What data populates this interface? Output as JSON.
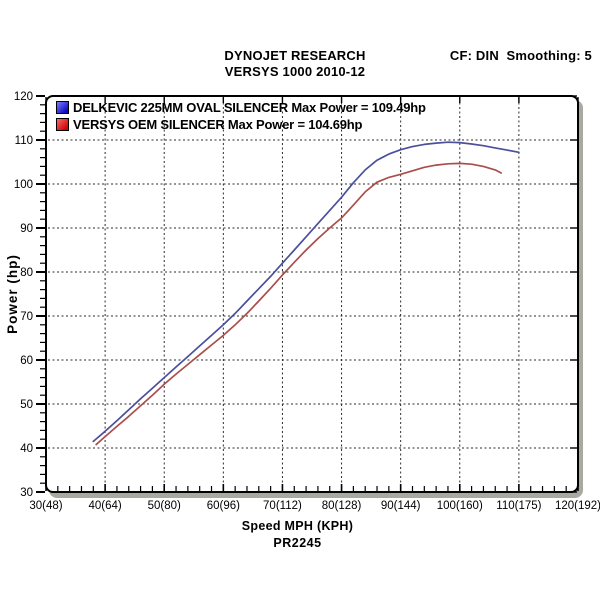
{
  "header": {
    "title": "DYNOJET RESEARCH",
    "subtitle": "VERSYS 1000 2010-12",
    "correction": "CF: DIN  Smoothing: 5"
  },
  "footer": {
    "xlabel": "Speed MPH (KPH)",
    "run_id": "PR2245"
  },
  "chart_data": {
    "type": "line",
    "title": "DYNOJET RESEARCH — VERSYS 1000 2010-12",
    "xlabel": "Speed MPH (KPH)",
    "ylabel": "Power (hp)",
    "xlim": [
      30,
      120
    ],
    "ylim": [
      30,
      120
    ],
    "grid": true,
    "grid_style": "dashed",
    "legend_position": "top-left",
    "x_major_ticks": [
      30,
      40,
      50,
      60,
      70,
      80,
      90,
      100,
      110,
      120
    ],
    "x_tick_labels": [
      "30(48)",
      "40(64)",
      "50(80)",
      "60(96)",
      "70(112)",
      "80(128)",
      "90(144)",
      "100(160)",
      "110(175)",
      "120(192)"
    ],
    "y_major_ticks": [
      30,
      40,
      50,
      60,
      70,
      80,
      90,
      100,
      110,
      120
    ],
    "y_tick_labels": [
      "30",
      "40",
      "50",
      "60",
      "70",
      "80",
      "90",
      "100",
      "110",
      "120"
    ],
    "minor_tick_step": 2,
    "series": [
      {
        "name": "DELKEVIC 225MM OVAL SILENCER",
        "legend_label": "DELKEVIC 225MM OVAL SILENCER Max Power = 109.49hp",
        "max_power_hp": 109.49,
        "color": "#4b4f9c",
        "swatch_light": "#7d7dff",
        "swatch_dark": "#0a0ac0",
        "x": [
          38,
          40,
          42,
          44,
          46,
          48,
          50,
          52,
          54,
          56,
          58,
          60,
          62,
          64,
          66,
          68,
          70,
          72,
          74,
          76,
          78,
          80,
          82,
          84,
          86,
          88,
          90,
          92,
          94,
          96,
          98,
          100,
          102,
          104,
          106,
          108,
          110
        ],
        "y": [
          41.5,
          43.8,
          46.2,
          48.7,
          51.2,
          53.6,
          56.0,
          58.4,
          60.8,
          63.2,
          65.6,
          68.0,
          70.6,
          73.4,
          76.2,
          79.0,
          82.0,
          85.0,
          88.0,
          91.0,
          94.0,
          97.0,
          100.3,
          103.2,
          105.4,
          106.8,
          107.8,
          108.5,
          109.0,
          109.3,
          109.49,
          109.4,
          109.1,
          108.7,
          108.2,
          107.7,
          107.2
        ]
      },
      {
        "name": "VERSYS OEM SILENCER",
        "legend_label": "VERSYS OEM SILENCER Max Power = 104.69hp",
        "max_power_hp": 104.69,
        "color": "#a94e4b",
        "swatch_light": "#ff6a6a",
        "swatch_dark": "#cc0505",
        "x": [
          38.5,
          40,
          42,
          44,
          46,
          48,
          50,
          52,
          54,
          56,
          58,
          60,
          62,
          64,
          66,
          68,
          70,
          72,
          74,
          76,
          78,
          80,
          82,
          84,
          86,
          88,
          90,
          92,
          94,
          96,
          98,
          100,
          102,
          104,
          106,
          107
        ],
        "y": [
          40.8,
          42.6,
          44.9,
          47.2,
          49.6,
          52.0,
          54.5,
          56.8,
          59.0,
          61.2,
          63.4,
          65.6,
          68.0,
          70.6,
          73.4,
          76.3,
          79.3,
          82.2,
          85.0,
          87.6,
          90.0,
          92.3,
          95.2,
          98.2,
          100.4,
          101.5,
          102.2,
          103.0,
          103.8,
          104.3,
          104.6,
          104.69,
          104.5,
          104.0,
          103.2,
          102.5
        ]
      }
    ]
  }
}
